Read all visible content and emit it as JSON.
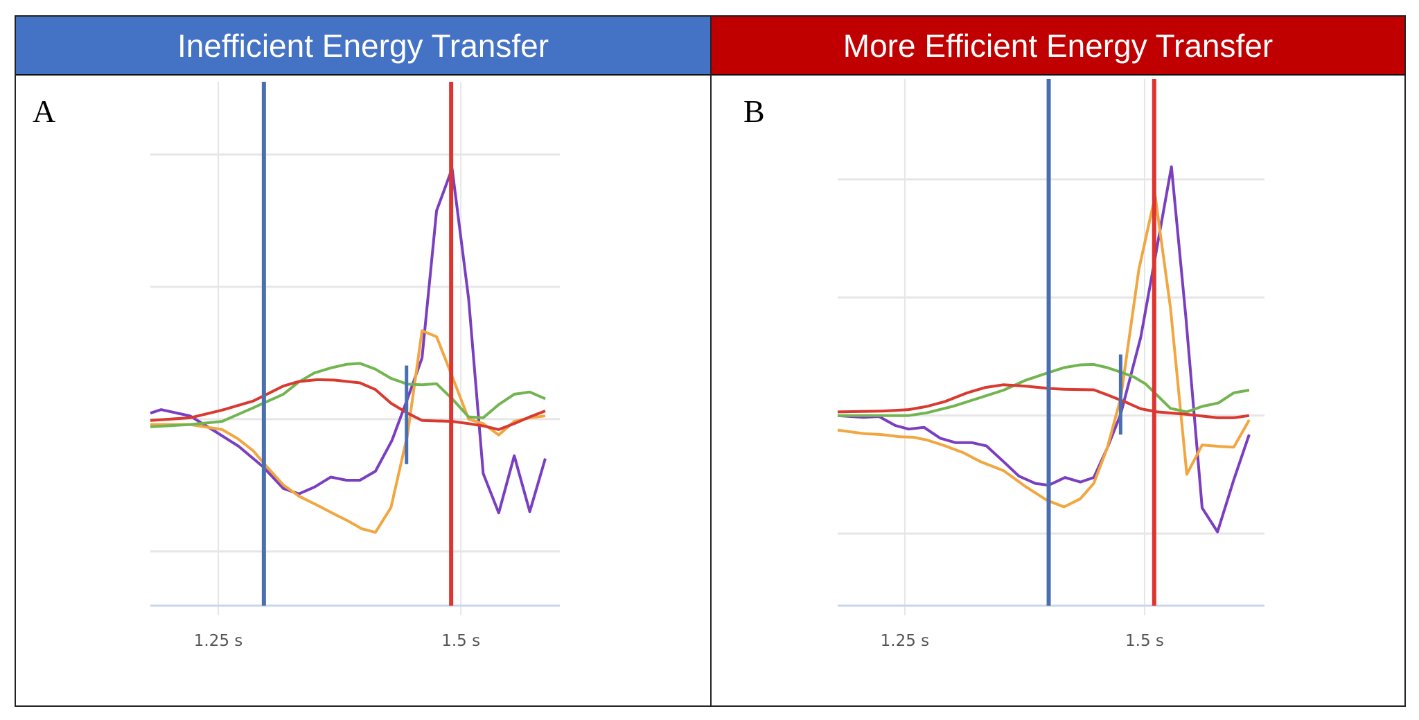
{
  "colors": {
    "header_a": "#4472C4",
    "header_b": "#C00000",
    "purple": "#7A3FC0",
    "orange": "#F2A640",
    "green": "#72B550",
    "red": "#D93A30",
    "marker_blue": "#4A6FB0",
    "marker_red": "#DD3530",
    "grid": "#e6e6e6",
    "axis": "#c9d5ec"
  },
  "panels": [
    {
      "header": "Inefficient Energy Transfer",
      "letter": "A"
    },
    {
      "header": "More Efficient Energy Transfer",
      "letter": "B"
    }
  ],
  "chart_data": [
    {
      "type": "line",
      "title": "",
      "xlabel": "",
      "ylabel": "",
      "xlim": [
        1.18,
        1.602
      ],
      "ylim": [
        -1.41,
        2.55
      ],
      "x_ticks": [
        1.25,
        1.5
      ],
      "x_tick_labels": [
        "1.25 s",
        "1.5 s"
      ],
      "y_gridlines": [
        -1,
        0,
        1,
        2
      ],
      "grid": true,
      "vertical_markers": [
        {
          "color": "blue",
          "x": 1.297,
          "full": true
        },
        {
          "color": "red",
          "x": 1.49,
          "full": true
        },
        {
          "color": "blue",
          "x": 1.444,
          "full": false,
          "y_range": [
            -0.34,
            0.405
          ]
        }
      ],
      "series": [
        {
          "color": "purple",
          "x": [
            1.18,
            1.191,
            1.221,
            1.249,
            1.271,
            1.296,
            1.317,
            1.333,
            1.349,
            1.366,
            1.382,
            1.396,
            1.412,
            1.429,
            1.445,
            1.46,
            1.475,
            1.491,
            1.508,
            1.523,
            1.539,
            1.555,
            1.571,
            1.587
          ],
          "y": [
            0.045,
            0.072,
            0.024,
            -0.103,
            -0.205,
            -0.36,
            -0.524,
            -0.565,
            -0.514,
            -0.438,
            -0.462,
            -0.462,
            -0.394,
            -0.161,
            0.154,
            0.462,
            1.575,
            1.894,
            0.908,
            -0.411,
            -0.709,
            -0.277,
            -0.699,
            -0.298
          ]
        },
        {
          "color": "orange",
          "x": [
            1.18,
            1.193,
            1.221,
            1.254,
            1.27,
            1.286,
            1.3,
            1.317,
            1.333,
            1.352,
            1.37,
            1.384,
            1.398,
            1.412,
            1.428,
            1.445,
            1.46,
            1.475,
            1.491,
            1.508,
            1.523,
            1.539,
            1.555,
            1.571,
            1.587
          ],
          "y": [
            -0.041,
            -0.041,
            -0.041,
            -0.079,
            -0.147,
            -0.24,
            -0.36,
            -0.497,
            -0.582,
            -0.651,
            -0.719,
            -0.771,
            -0.829,
            -0.856,
            -0.668,
            -0.12,
            0.668,
            0.623,
            0.325,
            0.0,
            -0.034,
            -0.12,
            -0.017,
            0.01,
            0.024
          ]
        },
        {
          "color": "green",
          "x": [
            1.18,
            1.221,
            1.254,
            1.286,
            1.317,
            1.333,
            1.349,
            1.366,
            1.382,
            1.396,
            1.412,
            1.428,
            1.445,
            1.46,
            1.475,
            1.491,
            1.508,
            1.523,
            1.539,
            1.555,
            1.571,
            1.587
          ],
          "y": [
            -0.058,
            -0.041,
            -0.017,
            0.086,
            0.188,
            0.281,
            0.349,
            0.387,
            0.414,
            0.421,
            0.377,
            0.308,
            0.264,
            0.26,
            0.267,
            0.154,
            0.017,
            0.01,
            0.11,
            0.188,
            0.205,
            0.154
          ]
        },
        {
          "color": "red",
          "x": [
            1.18,
            1.221,
            1.254,
            1.286,
            1.317,
            1.333,
            1.352,
            1.37,
            1.396,
            1.412,
            1.428,
            1.445,
            1.46,
            1.491,
            1.508,
            1.523,
            1.539,
            1.555,
            1.571,
            1.587
          ],
          "y": [
            -0.01,
            0.01,
            0.068,
            0.137,
            0.25,
            0.284,
            0.298,
            0.295,
            0.274,
            0.223,
            0.12,
            0.045,
            -0.01,
            -0.017,
            -0.034,
            -0.051,
            -0.079,
            -0.034,
            0.017,
            0.062
          ]
        }
      ]
    },
    {
      "type": "line",
      "title": "",
      "xlabel": "",
      "ylabel": "",
      "xlim": [
        1.18,
        1.625
      ],
      "ylim": [
        -1.61,
        2.85
      ],
      "x_ticks": [
        1.25,
        1.5
      ],
      "x_tick_labels": [
        "1.25 s",
        "1.5 s"
      ],
      "y_gridlines": [
        -1,
        0,
        1,
        2
      ],
      "grid": true,
      "vertical_markers": [
        {
          "color": "blue",
          "x": 1.4,
          "full": true
        },
        {
          "color": "red",
          "x": 1.51,
          "full": true
        },
        {
          "color": "blue",
          "x": 1.475,
          "full": false,
          "y_range": [
            -0.161,
            0.517
          ]
        }
      ],
      "series": [
        {
          "color": "purple",
          "x": [
            1.18,
            1.207,
            1.223,
            1.24,
            1.254,
            1.27,
            1.287,
            1.303,
            1.32,
            1.335,
            1.353,
            1.369,
            1.386,
            1.4,
            1.417,
            1.433,
            1.447,
            1.461,
            1.475,
            1.496,
            1.513,
            1.528,
            1.543,
            1.56,
            1.576,
            1.593,
            1.609
          ],
          "y": [
            0,
            -0.015,
            -0.008,
            -0.084,
            -0.115,
            -0.1,
            -0.192,
            -0.23,
            -0.23,
            -0.257,
            -0.391,
            -0.513,
            -0.575,
            -0.59,
            -0.525,
            -0.563,
            -0.525,
            -0.276,
            0.011,
            0.663,
            1.429,
            2.107,
            0.835,
            -0.782,
            -0.985,
            -0.544,
            -0.161
          ]
        },
        {
          "color": "orange",
          "x": [
            1.18,
            1.207,
            1.226,
            1.245,
            1.259,
            1.273,
            1.292,
            1.311,
            1.329,
            1.353,
            1.376,
            1.398,
            1.416,
            1.433,
            1.447,
            1.461,
            1.475,
            1.494,
            1.511,
            1.527,
            1.544,
            1.56,
            1.577,
            1.593,
            1.609
          ],
          "y": [
            -0.123,
            -0.153,
            -0.161,
            -0.18,
            -0.184,
            -0.207,
            -0.257,
            -0.314,
            -0.391,
            -0.467,
            -0.602,
            -0.717,
            -0.774,
            -0.705,
            -0.575,
            -0.276,
            0.146,
            1.238,
            1.862,
            0.912,
            -0.498,
            -0.249,
            -0.261,
            -0.268,
            -0.038
          ]
        },
        {
          "color": "green",
          "x": [
            1.18,
            1.254,
            1.273,
            1.301,
            1.329,
            1.353,
            1.376,
            1.4,
            1.416,
            1.433,
            1.447,
            1.461,
            1.475,
            1.489,
            1.501,
            1.513,
            1.527,
            1.544,
            1.56,
            1.577,
            1.593,
            1.609
          ],
          "y": [
            0,
            0,
            0.023,
            0.08,
            0.153,
            0.215,
            0.299,
            0.364,
            0.406,
            0.429,
            0.433,
            0.406,
            0.368,
            0.326,
            0.268,
            0.172,
            0.061,
            0.031,
            0.077,
            0.107,
            0.192,
            0.215
          ]
        },
        {
          "color": "red",
          "x": [
            1.18,
            1.226,
            1.254,
            1.273,
            1.292,
            1.315,
            1.334,
            1.353,
            1.376,
            1.4,
            1.416,
            1.447,
            1.461,
            1.48,
            1.496,
            1.513,
            1.543,
            1.576,
            1.593,
            1.609
          ],
          "y": [
            0.031,
            0.038,
            0.05,
            0.077,
            0.119,
            0.192,
            0.238,
            0.261,
            0.249,
            0.23,
            0.222,
            0.218,
            0.176,
            0.115,
            0.057,
            0.031,
            0.011,
            -0.019,
            -0.019,
            0
          ]
        }
      ]
    }
  ]
}
